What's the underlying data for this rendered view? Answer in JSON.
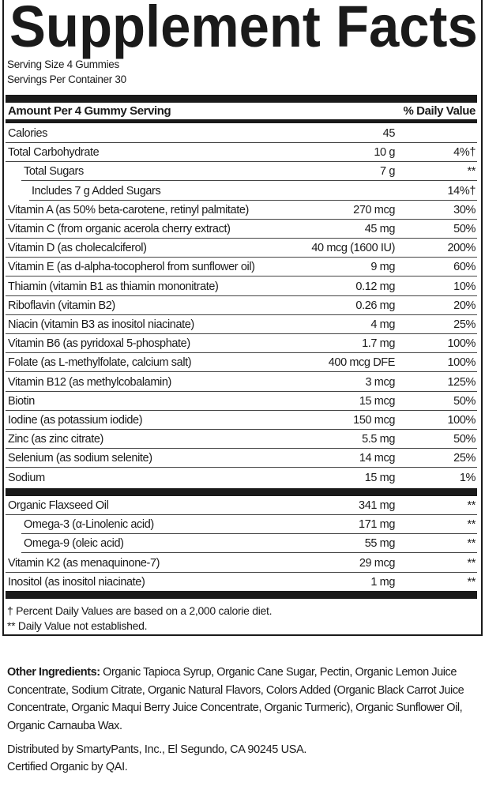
{
  "title": "Supplement Facts",
  "serving_size": "Serving Size 4 Gummies",
  "servings_per_container": "Servings Per Container 30",
  "header": {
    "amount": "Amount Per 4 Gummy Serving",
    "dv": "% Daily Value"
  },
  "rows1": [
    {
      "name": "Calories",
      "amount": "45",
      "dv": "",
      "indent": 0
    },
    {
      "name": "Total Carbohydrate",
      "amount": "10 g",
      "dv": "4%†",
      "indent": 0
    },
    {
      "name": "Total Sugars",
      "amount": "7 g",
      "dv": "**",
      "indent": 1
    },
    {
      "name": "Includes 7 g Added Sugars",
      "amount": "",
      "dv": "14%†",
      "indent": 2
    },
    {
      "name": "Vitamin A (as 50% beta-carotene, retinyl palmitate)",
      "amount": "270 mcg",
      "dv": "30%",
      "indent": 0
    },
    {
      "name": "Vitamin C (from organic acerola cherry extract)",
      "amount": "45 mg",
      "dv": "50%",
      "indent": 0
    },
    {
      "name": "Vitamin D (as cholecalciferol)",
      "amount": "40 mcg (1600 IU)",
      "dv": "200%",
      "indent": 0
    },
    {
      "name": "Vitamin E (as d-alpha-tocopherol from sunflower oil)",
      "amount": "9 mg",
      "dv": "60%",
      "indent": 0
    },
    {
      "name": "Thiamin (vitamin B1 as thiamin mononitrate)",
      "amount": "0.12 mg",
      "dv": "10%",
      "indent": 0
    },
    {
      "name": "Riboflavin (vitamin B2)",
      "amount": "0.26 mg",
      "dv": "20%",
      "indent": 0
    },
    {
      "name": "Niacin (vitamin B3 as inositol niacinate)",
      "amount": "4 mg",
      "dv": "25%",
      "indent": 0
    },
    {
      "name": "Vitamin B6 (as pyridoxal 5-phosphate)",
      "amount": "1.7 mg",
      "dv": "100%",
      "indent": 0
    },
    {
      "name": "Folate (as L-methylfolate, calcium salt)",
      "amount": "400 mcg DFE",
      "dv": "100%",
      "indent": 0
    },
    {
      "name": "Vitamin B12 (as methylcobalamin)",
      "amount": "3 mcg",
      "dv": "125%",
      "indent": 0
    },
    {
      "name": "Biotin",
      "amount": "15 mcg",
      "dv": "50%",
      "indent": 0
    },
    {
      "name": "Iodine (as potassium iodide)",
      "amount": "150 mcg",
      "dv": "100%",
      "indent": 0
    },
    {
      "name": "Zinc (as zinc citrate)",
      "amount": "5.5 mg",
      "dv": "50%",
      "indent": 0
    },
    {
      "name": "Selenium (as sodium selenite)",
      "amount": "14 mcg",
      "dv": "25%",
      "indent": 0
    },
    {
      "name": "Sodium",
      "amount": "15 mg",
      "dv": "1%",
      "indent": 0
    }
  ],
  "rows2": [
    {
      "name": "Organic Flaxseed Oil",
      "amount": "341 mg",
      "dv": "**",
      "indent": 0
    },
    {
      "name": "Omega-3 (α-Linolenic acid)",
      "amount": "171 mg",
      "dv": "**",
      "indent": 1
    },
    {
      "name": "Omega-9 (oleic acid)",
      "amount": "55 mg",
      "dv": "**",
      "indent": 1
    },
    {
      "name": "Vitamin K2 (as menaquinone-7)",
      "amount": "29 mcg",
      "dv": "**",
      "indent": 0
    },
    {
      "name": "Inositol (as inositol niacinate)",
      "amount": "1 mg",
      "dv": "**",
      "indent": 0
    }
  ],
  "footnotes": [
    "† Percent Daily Values are based on a 2,000 calorie diet.",
    "** Daily Value not established."
  ],
  "other_ingredients": {
    "label": "Other Ingredients:",
    "text": " Organic Tapioca Syrup, Organic Cane Sugar, Pectin, Organic Lemon Juice Concentrate, Sodium Citrate, Organic Natural Flavors, Colors Added (Organic Black Carrot Juice Concentrate, Organic Maqui Berry Juice Concentrate, Organic Turmeric), Organic Sunflower Oil, Organic Carnauba Wax."
  },
  "distributed_by": "Distributed by SmartyPants, Inc., El Segundo, CA 90245 USA.",
  "certified": "Certified Organic by QAI."
}
